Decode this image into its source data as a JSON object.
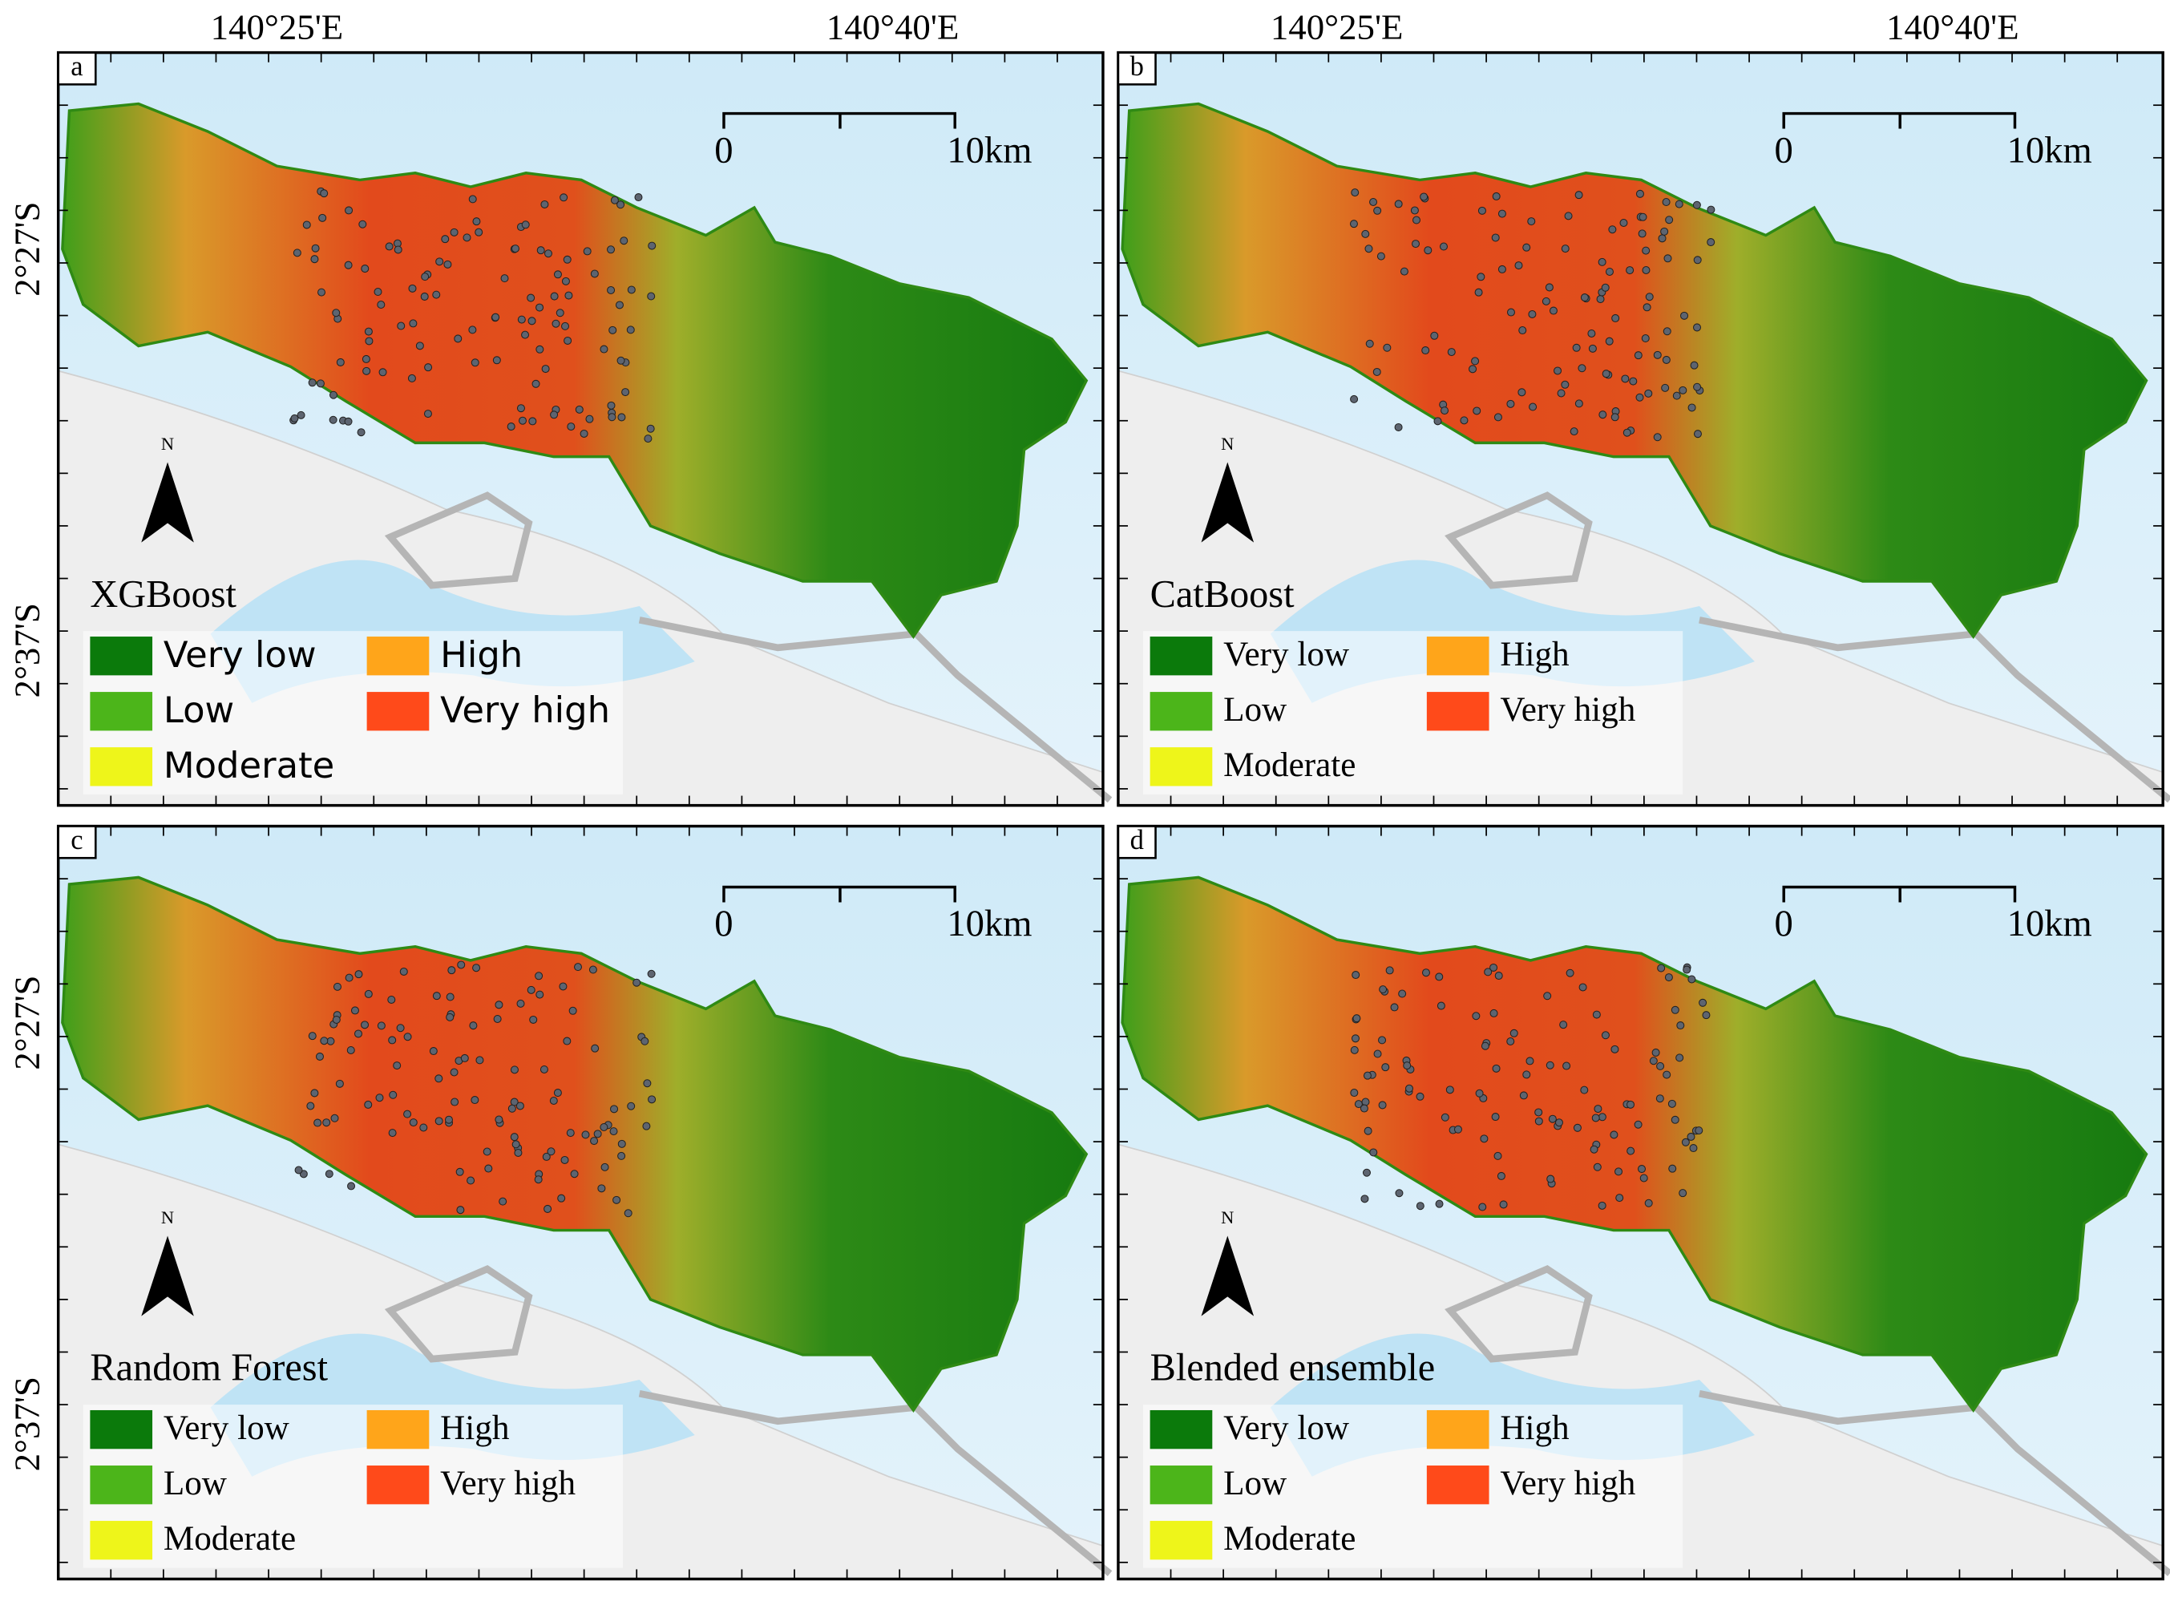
{
  "axes": {
    "top": [
      "140°25'E",
      "140°40'E"
    ],
    "left": [
      "2°27'S",
      "2°37'S"
    ]
  },
  "scale_bar": {
    "start": "0",
    "end": "10km"
  },
  "north_arrow": "N",
  "legend": [
    {
      "label": "Very low",
      "color": "#0b7a0b"
    },
    {
      "label": "Low",
      "color": "#4cb51a"
    },
    {
      "label": "Moderate",
      "color": "#eef51a"
    },
    {
      "label": "High",
      "color": "#ffa51a"
    },
    {
      "label": "Very high",
      "color": "#ff4a1a"
    }
  ],
  "panels": [
    {
      "letter": "a",
      "title": "XGBoost"
    },
    {
      "letter": "b",
      "title": "CatBoost"
    },
    {
      "letter": "c",
      "title": "Random Forest"
    },
    {
      "letter": "d",
      "title": "Blended ensemble"
    }
  ]
}
